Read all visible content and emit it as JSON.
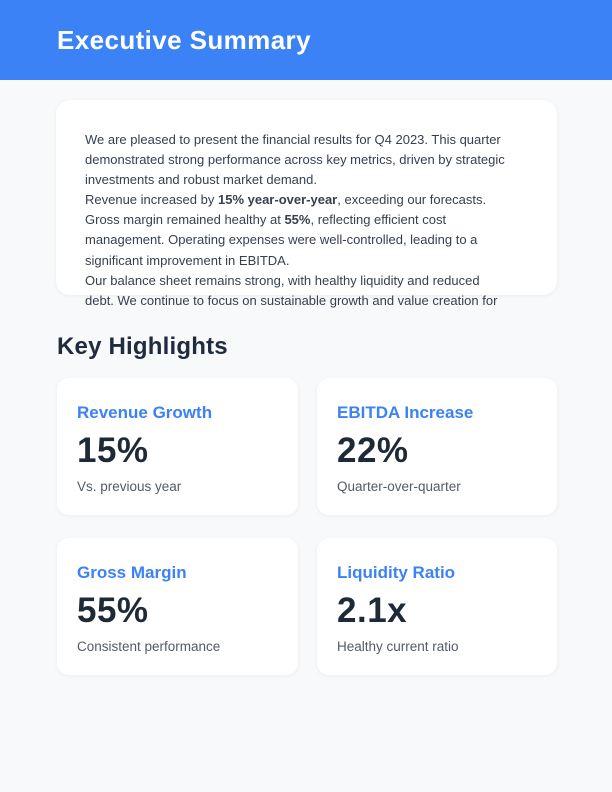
{
  "header": {
    "title": "Executive Summary"
  },
  "summary": {
    "lines": [
      [
        {
          "t": "We are pleased to present the financial results for Q4 2023. This quarter"
        }
      ],
      [
        {
          "t": "demonstrated strong performance across key metrics, driven by strategic"
        }
      ],
      [
        {
          "t": "investments and robust market demand."
        }
      ],
      [
        {
          "t": "Revenue increased by "
        },
        {
          "t": "15% year-over-year",
          "b": true
        },
        {
          "t": ", exceeding our forecasts."
        }
      ],
      [
        {
          "t": "Gross margin remained healthy at "
        },
        {
          "t": "55%",
          "b": true
        },
        {
          "t": ", reflecting efficient cost"
        }
      ],
      [
        {
          "t": "management. Operating expenses were well-controlled, leading to a"
        }
      ],
      [
        {
          "t": "significant improvement in EBITDA."
        }
      ],
      [
        {
          "t": "Our balance sheet remains strong, with healthy liquidity and reduced"
        }
      ],
      [
        {
          "t": "debt. We continue to focus on sustainable growth and value creation for"
        }
      ]
    ]
  },
  "highlights": {
    "heading": "Key Highlights",
    "cards": [
      {
        "title": "Revenue Growth",
        "value": "15%",
        "subtitle": "Vs. previous year"
      },
      {
        "title": "EBITDA Increase",
        "value": "22%",
        "subtitle": "Quarter-over-quarter"
      },
      {
        "title": "Gross Margin",
        "value": "55%",
        "subtitle": "Consistent performance"
      },
      {
        "title": "Liquidity Ratio",
        "value": "2.1x",
        "subtitle": "Healthy current ratio"
      }
    ]
  },
  "colors": {
    "accent": "#3b82f6",
    "heading": "#202c3d",
    "body_text": "#36404e",
    "muted": "#525b68",
    "page_bg": "#f8f9fb",
    "card_bg": "#ffffff"
  }
}
